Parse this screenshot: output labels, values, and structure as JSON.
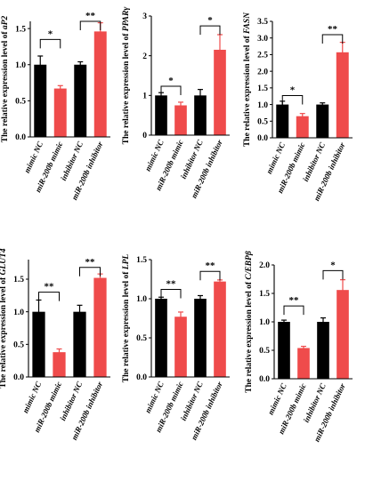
{
  "chart_data": [
    {
      "type": "bar",
      "gene": "aP2",
      "ylabel_prefix": "The relative expression level of",
      "categories": [
        "mimic NC",
        "miR-200b mimic",
        "inhibitor NC",
        "miR-200b inhibitor"
      ],
      "values": [
        1.0,
        0.67,
        1.0,
        1.46
      ],
      "errors": [
        0.12,
        0.04,
        0.04,
        0.12
      ],
      "colors": [
        "#000000",
        "#ef4b4b",
        "#000000",
        "#ef4b4b"
      ],
      "ylim": [
        0,
        1.6
      ],
      "ticks": [
        "0.0",
        "0.5",
        "1.0",
        "1.5"
      ],
      "significance": [
        {
          "pair": [
            0,
            1
          ],
          "label": "*",
          "y": 1.35
        },
        {
          "pair": [
            2,
            3
          ],
          "label": "**",
          "y": 1.6
        }
      ]
    },
    {
      "type": "bar",
      "gene": "PPARγ",
      "ylabel_prefix": "The relative expression level of",
      "categories": [
        "mimic NC",
        "miR-200b mimic",
        "inhibitor NC",
        "miR-200b inhibitor"
      ],
      "values": [
        1.0,
        0.75,
        1.0,
        2.15
      ],
      "errors": [
        0.07,
        0.08,
        0.15,
        0.38
      ],
      "colors": [
        "#000000",
        "#ef4b4b",
        "#000000",
        "#ef4b4b"
      ],
      "ylim": [
        0,
        3
      ],
      "ticks": [
        "0",
        "1",
        "2",
        "3"
      ],
      "significance": [
        {
          "pair": [
            0,
            1
          ],
          "label": "*",
          "y": 1.23
        },
        {
          "pair": [
            2,
            3
          ],
          "label": "*",
          "y": 2.75
        }
      ]
    },
    {
      "type": "bar",
      "gene": "FASN",
      "ylabel_prefix": "The relative expression level of",
      "categories": [
        "mimic NC",
        "miR-200b mimic",
        "inhibitor NC",
        "miR-200b inhibitor"
      ],
      "values": [
        1.0,
        0.65,
        1.0,
        2.57
      ],
      "errors": [
        0.1,
        0.08,
        0.05,
        0.3
      ],
      "colors": [
        "#000000",
        "#ef4b4b",
        "#000000",
        "#ef4b4b"
      ],
      "ylim": [
        0,
        3.5
      ],
      "ticks": [
        "0.0",
        "0.5",
        "1.0",
        "1.5",
        "2.0",
        "2.5",
        "3.0",
        "3.5"
      ],
      "significance": [
        {
          "pair": [
            0,
            1
          ],
          "label": "*",
          "y": 1.27
        },
        {
          "pair": [
            2,
            3
          ],
          "label": "**",
          "y": 3.1
        }
      ]
    },
    {
      "type": "bar",
      "gene": "GLUT4",
      "ylabel_prefix": "The relative expression level of",
      "categories": [
        "mimic NC",
        "miR-200b mimic",
        "inhibitor NC",
        "miR-200b inhibitor"
      ],
      "values": [
        1.0,
        0.38,
        1.0,
        1.52
      ],
      "errors": [
        0.18,
        0.05,
        0.1,
        0.06
      ],
      "colors": [
        "#000000",
        "#ef4b4b",
        "#000000",
        "#ef4b4b"
      ],
      "ylim": [
        0,
        1.8
      ],
      "ticks": [
        "0.0",
        "0.5",
        "1.0",
        "1.5"
      ],
      "significance": [
        {
          "pair": [
            0,
            1
          ],
          "label": "**",
          "y": 1.3
        },
        {
          "pair": [
            2,
            3
          ],
          "label": "**",
          "y": 1.68
        }
      ]
    },
    {
      "type": "bar",
      "gene": "LPL",
      "ylabel_prefix": "The relative expression level of",
      "categories": [
        "mimic NC",
        "miR-200b mimic",
        "inhibitor NC",
        "miR-200b inhibitor"
      ],
      "values": [
        1.0,
        0.77,
        1.0,
        1.22
      ],
      "errors": [
        0.02,
        0.06,
        0.04,
        0.02
      ],
      "colors": [
        "#000000",
        "#ef4b4b",
        "#000000",
        "#ef4b4b"
      ],
      "ylim": [
        0,
        1.5
      ],
      "ticks": [
        "0.0",
        "0.5",
        "1.0",
        "1.5"
      ],
      "significance": [
        {
          "pair": [
            0,
            1
          ],
          "label": "**",
          "y": 1.12
        },
        {
          "pair": [
            2,
            3
          ],
          "label": "**",
          "y": 1.35
        }
      ]
    },
    {
      "type": "bar",
      "gene": "C/EBPβ",
      "ylabel_prefix": "The relative expression level of",
      "categories": [
        "mimic NC",
        "miR-200b mimic",
        "inhibitor NC",
        "miR-200b inhibitor"
      ],
      "values": [
        1.0,
        0.54,
        1.0,
        1.56
      ],
      "errors": [
        0.03,
        0.03,
        0.07,
        0.18
      ],
      "colors": [
        "#000000",
        "#ef4b4b",
        "#000000",
        "#ef4b4b"
      ],
      "ylim": [
        0,
        2.0
      ],
      "ticks": [
        "0.0",
        "0.5",
        "1.0",
        "1.5",
        "2.0"
      ],
      "significance": [
        {
          "pair": [
            0,
            1
          ],
          "label": "**",
          "y": 1.28
        },
        {
          "pair": [
            2,
            3
          ],
          "label": "*",
          "y": 1.9
        }
      ]
    }
  ]
}
